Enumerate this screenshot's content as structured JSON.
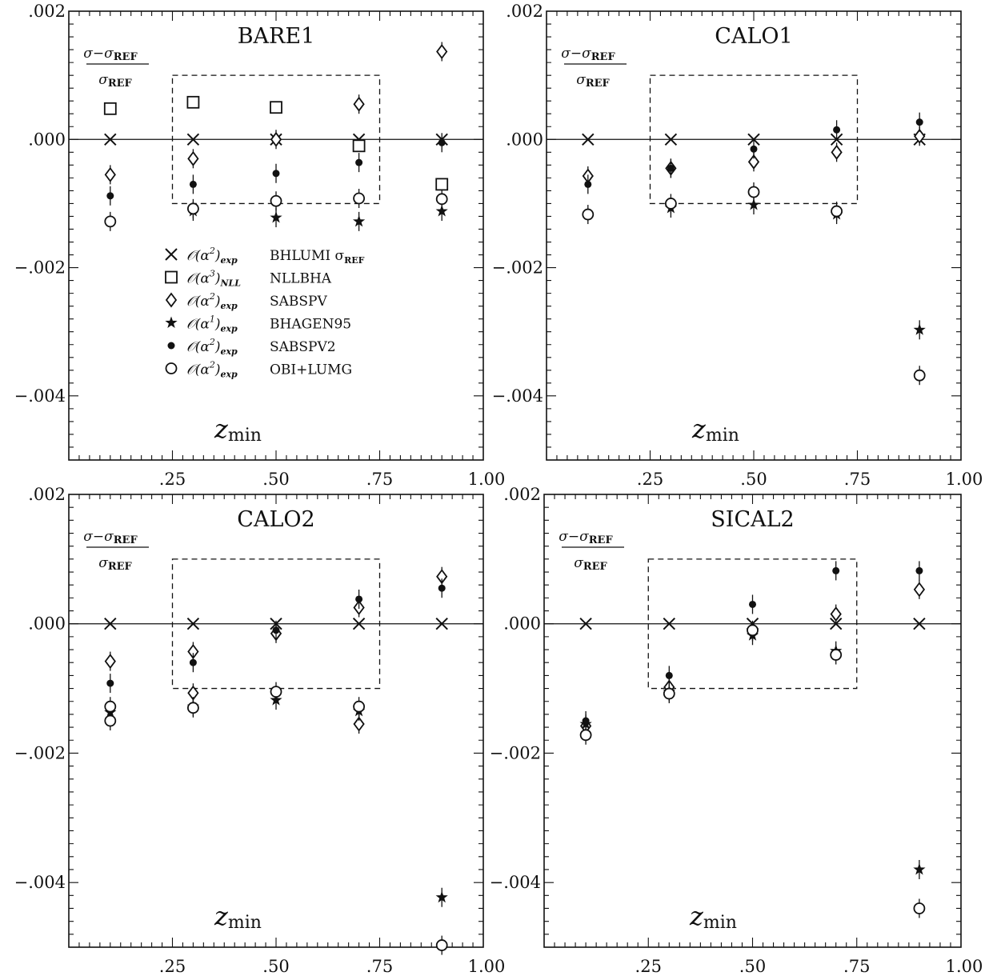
{
  "chart_data": [
    {
      "type": "scatter",
      "title": "BARE1",
      "xlabel": "z_min",
      "ylabel": "σ−σREF / σREF",
      "xlim": [
        0.0,
        1.0
      ],
      "ylim": [
        -0.005,
        0.002
      ],
      "x_ticks": [
        ".25",
        ".50",
        ".75",
        "1.00"
      ],
      "y_ticks": [
        ".002",
        ".000",
        "−.002",
        "−.004"
      ],
      "x": [
        0.1,
        0.3,
        0.5,
        0.7,
        0.9
      ],
      "boxed_region": {
        "x": [
          0.25,
          0.75
        ],
        "y": [
          -0.001,
          0.001
        ]
      },
      "series": [
        {
          "name": "BHLUMI σREF",
          "marker": "cross",
          "values": [
            0.0,
            0.0,
            0.0,
            0.0,
            0.0
          ]
        },
        {
          "name": "NLLBHA",
          "marker": "square",
          "values": [
            0.00048,
            0.00058,
            0.0005,
            -0.0001,
            -0.0007
          ]
        },
        {
          "name": "SABSPV",
          "marker": "diamond",
          "values": [
            -0.00055,
            -0.0003,
            0.0,
            0.00055,
            0.00137
          ]
        },
        {
          "name": "BHAGEN95",
          "marker": "star",
          "values": [
            null,
            -0.00112,
            -0.00122,
            -0.00128,
            -0.00112
          ]
        },
        {
          "name": "SABSPV2",
          "marker": "dot",
          "values": [
            -0.00088,
            -0.0007,
            -0.00053,
            -0.00036,
            -5e-05
          ]
        },
        {
          "name": "OBI+LUMG",
          "marker": "circle",
          "values": [
            -0.00128,
            -0.00108,
            -0.00096,
            -0.00092,
            -0.00093
          ]
        }
      ]
    },
    {
      "type": "scatter",
      "title": "CALO1",
      "xlabel": "z_min",
      "ylabel": "σ−σREF / σREF",
      "xlim": [
        0.0,
        1.0
      ],
      "ylim": [
        -0.005,
        0.002
      ],
      "x_ticks": [
        ".25",
        ".50",
        ".75",
        "1.00"
      ],
      "y_ticks": [
        ".002",
        ".000",
        "−.002",
        "−.004"
      ],
      "x": [
        0.1,
        0.3,
        0.5,
        0.7,
        0.9
      ],
      "boxed_region": {
        "x": [
          0.25,
          0.75
        ],
        "y": [
          -0.001,
          0.001
        ]
      },
      "series": [
        {
          "name": "BHLUMI σREF",
          "marker": "cross",
          "values": [
            0.0,
            0.0,
            0.0,
            0.0,
            0.0
          ]
        },
        {
          "name": "SABSPV",
          "marker": "diamond",
          "values": [
            -0.00057,
            -0.00045,
            -0.00035,
            -0.0002,
            5e-05
          ]
        },
        {
          "name": "BHAGEN95",
          "marker": "star",
          "values": [
            null,
            -0.00107,
            -0.00102,
            -0.00117,
            -0.00297
          ]
        },
        {
          "name": "SABSPV2",
          "marker": "dot",
          "values": [
            -0.0007,
            -0.00045,
            -0.00015,
            0.00015,
            0.00027
          ]
        },
        {
          "name": "OBI+LUMG",
          "marker": "circle",
          "values": [
            -0.00117,
            -0.001,
            -0.00082,
            -0.00112,
            -0.00368
          ]
        }
      ]
    },
    {
      "type": "scatter",
      "title": "CALO2",
      "xlabel": "z_min",
      "ylabel": "σ−σREF / σREF",
      "xlim": [
        0.0,
        1.0
      ],
      "ylim": [
        -0.005,
        0.002
      ],
      "x_ticks": [
        ".25",
        ".50",
        ".75",
        "1.00"
      ],
      "y_ticks": [
        ".002",
        ".000",
        "−.002",
        "−.004"
      ],
      "x": [
        0.1,
        0.3,
        0.5,
        0.7,
        0.9
      ],
      "boxed_region": {
        "x": [
          0.25,
          0.75
        ],
        "y": [
          -0.001,
          0.001
        ]
      },
      "series": [
        {
          "name": "BHLUMI σREF",
          "marker": "cross",
          "values": [
            0.0,
            0.0,
            0.0,
            0.0,
            0.0
          ]
        },
        {
          "name": "SABSPV",
          "marker": "diamond",
          "values": [
            -0.00058,
            -0.00043,
            -0.00015,
            0.00025,
            0.00073
          ]
        },
        {
          "name": "SABSPV",
          "marker": "diamond",
          "values": [
            null,
            -0.00107,
            null,
            -0.00155,
            null
          ]
        },
        {
          "name": "BHAGEN95",
          "marker": "star",
          "values": [
            -0.00137,
            -0.00128,
            -0.00118,
            -0.00135,
            -0.00423
          ]
        },
        {
          "name": "SABSPV2",
          "marker": "dot",
          "values": [
            -0.00092,
            -0.0006,
            -0.0001,
            0.00038,
            0.00055
          ]
        },
        {
          "name": "OBI+LUMG",
          "marker": "circle",
          "values": [
            -0.0015,
            -0.0013,
            -0.00105,
            -0.00128,
            -0.00497
          ]
        },
        {
          "name": "OBI+LUMG",
          "marker": "circle",
          "values": [
            -0.00128,
            null,
            null,
            null,
            null
          ]
        }
      ]
    },
    {
      "type": "scatter",
      "title": "SICAL2",
      "xlabel": "z_min",
      "ylabel": "σ−σREF / σREF",
      "xlim": [
        0.0,
        1.0
      ],
      "ylim": [
        -0.005,
        0.002
      ],
      "x_ticks": [
        ".25",
        ".50",
        ".75",
        "1.00"
      ],
      "y_ticks": [
        ".002",
        ".000",
        "−.002",
        "−.004"
      ],
      "x": [
        0.1,
        0.3,
        0.5,
        0.7,
        0.9
      ],
      "boxed_region": {
        "x": [
          0.25,
          0.75
        ],
        "y": [
          -0.001,
          0.001
        ]
      },
      "series": [
        {
          "name": "BHLUMI σREF",
          "marker": "cross",
          "values": [
            0.0,
            0.0,
            0.0,
            0.0,
            0.0
          ]
        },
        {
          "name": "SABSPV",
          "marker": "diamond",
          "values": [
            -0.00158,
            -0.00098,
            -0.00012,
            0.00015,
            0.00053
          ]
        },
        {
          "name": "BHAGEN95",
          "marker": "star",
          "values": [
            -0.00155,
            -0.00105,
            -0.00018,
            -0.00042,
            -0.0038
          ]
        },
        {
          "name": "SABSPV2",
          "marker": "dot",
          "values": [
            -0.0015,
            -0.0008,
            0.0003,
            0.00082,
            0.00082
          ]
        },
        {
          "name": "OBI+LUMG",
          "marker": "circle",
          "values": [
            -0.00172,
            -0.00108,
            -0.0001,
            -0.00048,
            -0.0044
          ]
        }
      ]
    }
  ],
  "legend": [
    {
      "marker": "cross",
      "order": "2",
      "qualifier": "exp",
      "program": "BHLUMI σ",
      "program_sub": "REF"
    },
    {
      "marker": "square",
      "order": "3",
      "qualifier": "NLL",
      "program": "NLLBHA",
      "program_sub": ""
    },
    {
      "marker": "diamond",
      "order": "2",
      "qualifier": "exp",
      "program": "SABSPV",
      "program_sub": ""
    },
    {
      "marker": "star",
      "order": "1",
      "qualifier": "exp",
      "program": "BHAGEN95",
      "program_sub": ""
    },
    {
      "marker": "dot",
      "order": "2",
      "qualifier": "exp",
      "program": "SABSPV2",
      "program_sub": ""
    },
    {
      "marker": "circle",
      "order": "2",
      "qualifier": "exp",
      "program": "OBI+LUMG",
      "program_sub": ""
    }
  ],
  "ratio_label": {
    "num": "σ−σ",
    "num_sub": "REF",
    "den": "σ",
    "den_sub": "REF"
  },
  "xaxis_label": {
    "main": "z",
    "sub": "min"
  },
  "colors": {
    "ink": "#111111",
    "background": "#ffffff"
  }
}
